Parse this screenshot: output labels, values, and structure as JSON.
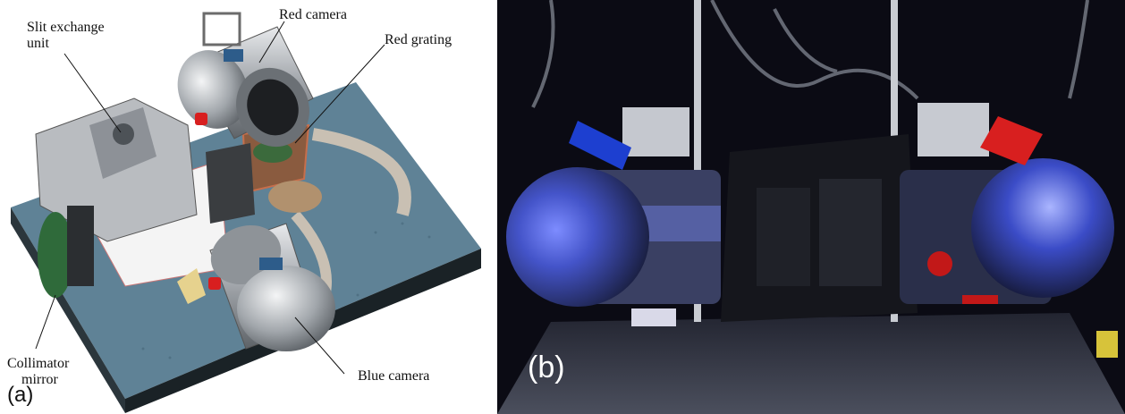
{
  "panel_a": {
    "label": "(a)",
    "callouts": {
      "slit_exchange_unit": "Slit exchange\nunit",
      "red_camera": "Red camera",
      "red_grating": "Red grating",
      "collimator_mirror": "Collimator\n    mirror",
      "blue_camera": "Blue camera"
    }
  },
  "panel_b": {
    "label": "(b)"
  },
  "colors": {
    "table": "#5f8296",
    "metal": "#a9adb2",
    "red_accent": "#d81f1f",
    "blue_accent": "#1d3fd0"
  }
}
